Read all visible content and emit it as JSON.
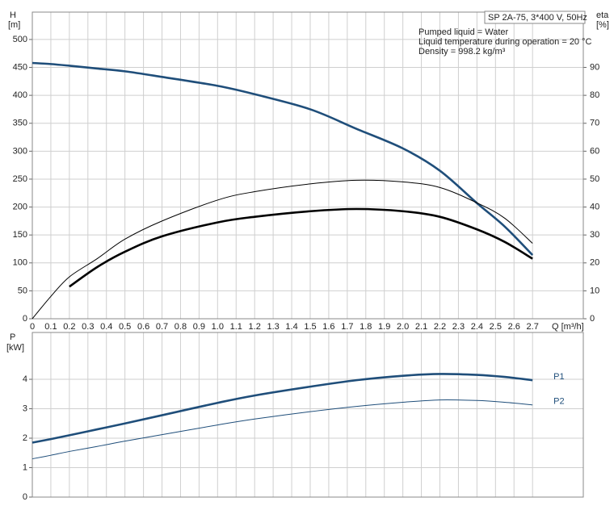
{
  "chart_data": [
    {
      "type": "line",
      "y_label": "H",
      "y_unit": "[m]",
      "y2_label": "eta",
      "y2_unit": "[%]",
      "x_label": "Q [m³/h]",
      "info_box": "SP 2A-75, 3*400 V, 50Hz",
      "annotations": [
        "Pumped liquid = Water",
        "Liquid temperature during operation = 20 °C",
        "Density = 998.2 kg/m³"
      ],
      "grid": true,
      "x": [
        0,
        0.1,
        0.2,
        0.35,
        0.5,
        0.7,
        1.0,
        1.2,
        1.5,
        1.75,
        2.0,
        2.2,
        2.4,
        2.55,
        2.7
      ],
      "xlim": [
        0,
        2.974
      ],
      "xticks": [
        0,
        0.1,
        0.2,
        0.3,
        0.4,
        0.5,
        0.6,
        0.7,
        0.8,
        0.9,
        {
          "value": 1,
          "label": "1.0"
        },
        1.1,
        1.2,
        1.3,
        1.4,
        1.5,
        1.6,
        1.7,
        1.8,
        1.9,
        {
          "value": 2,
          "label": "2.0"
        },
        2.1,
        2.2,
        2.3,
        2.4,
        2.5,
        2.6,
        2.7
      ],
      "ylim": [
        0,
        549
      ],
      "yticks": [
        0,
        50,
        100,
        150,
        200,
        250,
        300,
        350,
        400,
        450,
        500
      ],
      "y2lim": [
        0,
        109.8
      ],
      "y2ticks": [
        0,
        10,
        20,
        30,
        40,
        50,
        60,
        70,
        80,
        90
      ],
      "series": [
        {
          "color": "#1f4e7a",
          "weight": "thick",
          "values": [
            458,
            456,
            453,
            448,
            443,
            433,
            417,
            402,
            375,
            340,
            305,
            265,
            207,
            165,
            114
          ]
        },
        {
          "color": "#000000",
          "weight": "thin",
          "axis": "y2",
          "values": [
            0,
            8,
            15,
            21.5,
            28.5,
            35,
            42.5,
            45.5,
            48.3,
            49.6,
            49,
            47,
            41.5,
            36,
            27
          ]
        },
        {
          "color": "#000000",
          "weight": "thick",
          "axis": "y2",
          "values": [
            null,
            null,
            11.5,
            18.5,
            24,
            29.5,
            34.5,
            36.5,
            38.5,
            39.3,
            38.5,
            36.5,
            32,
            27.5,
            21.5
          ]
        }
      ]
    },
    {
      "type": "line",
      "y_label": "P",
      "y_unit": "[kW]",
      "grid": true,
      "x": [
        0,
        0.1,
        0.2,
        0.35,
        0.5,
        0.7,
        1.0,
        1.2,
        1.5,
        1.75,
        2.0,
        2.2,
        2.4,
        2.55,
        2.7
      ],
      "xlim": [
        0,
        2.974
      ],
      "ylim": [
        0,
        5.59
      ],
      "yticks": [
        0,
        1,
        2,
        3,
        4
      ],
      "series": [
        {
          "name": "P1",
          "color": "#1f4e7a",
          "weight": "thick",
          "values": [
            1.85,
            1.97,
            2.1,
            2.3,
            2.5,
            2.78,
            3.2,
            3.45,
            3.75,
            3.97,
            4.12,
            4.18,
            4.15,
            4.08,
            3.97
          ]
        },
        {
          "name": "P2",
          "color": "#1f4e7a",
          "weight": "thin",
          "values": [
            1.3,
            1.42,
            1.55,
            1.72,
            1.9,
            2.12,
            2.45,
            2.65,
            2.9,
            3.08,
            3.22,
            3.3,
            3.28,
            3.22,
            3.13
          ]
        }
      ]
    }
  ]
}
